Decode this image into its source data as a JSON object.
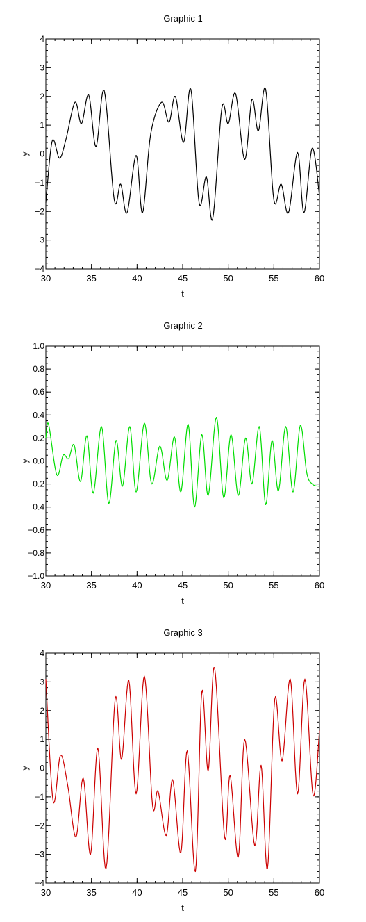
{
  "chart_data": [
    {
      "type": "line",
      "title": "Graphic 1",
      "xlabel": "t",
      "ylabel": "y",
      "xlim": [
        30,
        60
      ],
      "ylim": [
        -4,
        4
      ],
      "xticks": [
        30,
        35,
        40,
        45,
        50,
        55,
        60
      ],
      "yticks": [
        -4,
        -3,
        -2,
        -1,
        0,
        1,
        2,
        3,
        4
      ],
      "ytick_labels": [
        "−4",
        "−3",
        "−2",
        "−1",
        "0",
        "1",
        "2",
        "3",
        "4"
      ],
      "grid": false,
      "color": "#000000",
      "series": [
        {
          "x": [
            30,
            30.7,
            31.5,
            32.2,
            33.2,
            33.9,
            34.7,
            35.5,
            36.4,
            37.5,
            38.2,
            38.9,
            39.9,
            40.6,
            41.5,
            42.7,
            43.5,
            44.2,
            45.1,
            45.9,
            46.8,
            47.6,
            48.3,
            49.3,
            50,
            50.8,
            51.8,
            52.6,
            53.3,
            54.1,
            55,
            55.8,
            56.6,
            57.6,
            58.3,
            59.2,
            60
          ],
          "y": [
            -1.7,
            0.45,
            -0.15,
            0.5,
            1.8,
            1.05,
            2.05,
            0.25,
            2.2,
            -1.6,
            -1.05,
            -2.05,
            -0.05,
            -2.05,
            0.7,
            1.8,
            1.1,
            2.0,
            0.4,
            2.25,
            -1.7,
            -0.8,
            -2.25,
            1.6,
            1.05,
            2.1,
            -0.2,
            1.9,
            0.8,
            2.25,
            -1.6,
            -1.05,
            -2.05,
            0.05,
            -2.05,
            0.2,
            -1.45
          ]
        }
      ]
    },
    {
      "type": "line",
      "title": "Graphic 2",
      "xlabel": "t",
      "ylabel": "y",
      "xlim": [
        30,
        60
      ],
      "ylim": [
        -1.0,
        1.0
      ],
      "xticks": [
        30,
        35,
        40,
        45,
        50,
        55,
        60
      ],
      "yticks": [
        -1.0,
        -0.8,
        -0.6,
        -0.4,
        -0.2,
        0.0,
        0.2,
        0.4,
        0.6,
        0.8,
        1.0
      ],
      "ytick_labels": [
        "−1.0",
        "−0.8",
        "−0.6",
        "−0.4",
        "−0.2",
        "0.0",
        "0.2",
        "0.4",
        "0.6",
        "0.8",
        "1.0"
      ],
      "grid": false,
      "color": "#00dd00",
      "series": [
        {
          "x": [
            30,
            30.3,
            31.2,
            31.9,
            32.5,
            33.1,
            33.8,
            34.5,
            35.2,
            36.1,
            36.9,
            37.7,
            38.4,
            39.2,
            39.9,
            40.8,
            41.6,
            42.5,
            43.3,
            44.1,
            44.8,
            45.6,
            46.3,
            47.1,
            47.8,
            48.7,
            49.5,
            50.3,
            51.1,
            51.9,
            52.6,
            53.4,
            54.1,
            54.8,
            55.5,
            56.3,
            57.1,
            57.9,
            58.6,
            59.2,
            60
          ],
          "y": [
            0.2,
            0.32,
            -0.12,
            0.05,
            0.02,
            0.14,
            -0.18,
            0.22,
            -0.28,
            0.3,
            -0.37,
            0.18,
            -0.22,
            0.3,
            -0.27,
            0.33,
            -0.2,
            0.13,
            -0.17,
            0.21,
            -0.27,
            0.32,
            -0.4,
            0.23,
            -0.3,
            0.38,
            -0.32,
            0.23,
            -0.3,
            0.2,
            -0.2,
            0.3,
            -0.38,
            0.18,
            -0.26,
            0.3,
            -0.27,
            0.31,
            -0.1,
            -0.2,
            -0.22
          ]
        }
      ]
    },
    {
      "type": "line",
      "title": "Graphic 3",
      "xlabel": "t",
      "ylabel": "y",
      "xlim": [
        30,
        60
      ],
      "ylim": [
        -4,
        4
      ],
      "xticks": [
        30,
        35,
        40,
        45,
        50,
        55,
        60
      ],
      "yticks": [
        -4,
        -3,
        -2,
        -1,
        0,
        1,
        2,
        3,
        4
      ],
      "ytick_labels": [
        "−4",
        "−3",
        "−2",
        "−1",
        "0",
        "1",
        "2",
        "3",
        "4"
      ],
      "grid": false,
      "color": "#cc0000",
      "series": [
        {
          "x": [
            30,
            30.8,
            31.6,
            32.4,
            33.3,
            34.1,
            34.9,
            35.7,
            36.6,
            37.6,
            38.3,
            39.1,
            39.9,
            40.8,
            41.7,
            42.3,
            43.2,
            43.9,
            44.8,
            45.5,
            46.4,
            47.1,
            47.8,
            48.5,
            49.6,
            50.2,
            51.1,
            51.8,
            52.9,
            53.6,
            54.3,
            55.1,
            55.9,
            56.8,
            57.6,
            58.4,
            59.3,
            60
          ],
          "y": [
            3.1,
            -1.15,
            0.45,
            -0.6,
            -2.4,
            -0.35,
            -3.0,
            0.7,
            -3.5,
            2.4,
            0.3,
            3.05,
            -0.9,
            3.2,
            -1.3,
            -0.8,
            -2.35,
            -0.4,
            -2.95,
            0.6,
            -3.6,
            2.65,
            -0.1,
            3.5,
            -2.4,
            -0.25,
            -3.1,
            1.0,
            -2.7,
            0.1,
            -3.5,
            2.4,
            0.25,
            3.1,
            -0.9,
            3.1,
            -0.95,
            1.3
          ]
        }
      ]
    }
  ]
}
